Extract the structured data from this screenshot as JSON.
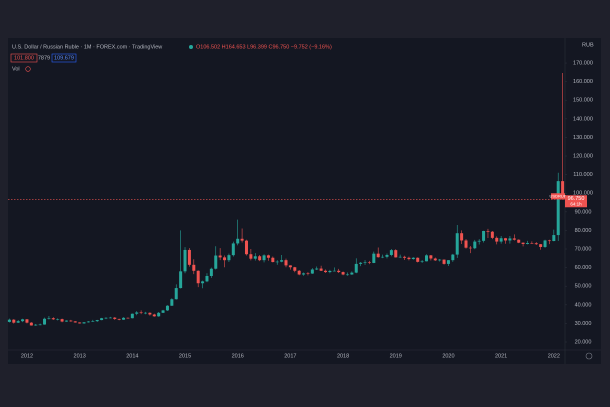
{
  "chart_data": {
    "type": "candlestick",
    "title": "U.S. Dollar / Russian Ruble · 1M · FOREX.com · TradingView",
    "quote": "O106.502 H164.653 L96.399 C96.750 −9.752 (−9.16%)",
    "badges": [
      "101.800",
      "7879",
      "109.679"
    ],
    "indicator": "Vol",
    "currency": "RUB",
    "symbol": "USDRUB",
    "last_label": "96.750",
    "countdown": "64:1h",
    "up_color": "#26a69a",
    "down_color": "#ef5350",
    "grid": false,
    "categories": [
      null,
      null,
      null,
      null,
      "2012",
      null,
      null,
      null,
      null,
      null,
      null,
      null,
      null,
      null,
      null,
      null,
      "2013",
      null,
      null,
      null,
      null,
      null,
      null,
      null,
      null,
      null,
      null,
      null,
      "2014",
      null,
      null,
      null,
      null,
      null,
      null,
      null,
      null,
      null,
      null,
      null,
      "2015",
      null,
      null,
      null,
      null,
      null,
      null,
      null,
      null,
      null,
      null,
      null,
      "2016",
      null,
      null,
      null,
      null,
      null,
      null,
      null,
      null,
      null,
      null,
      null,
      "2017",
      null,
      null,
      null,
      null,
      null,
      null,
      null,
      null,
      null,
      null,
      null,
      "2018",
      null,
      null,
      null,
      null,
      null,
      null,
      null,
      null,
      null,
      null,
      null,
      "2019",
      null,
      null,
      null,
      null,
      null,
      null,
      null,
      null,
      null,
      null,
      null,
      "2020",
      null,
      null,
      null,
      null,
      null,
      null,
      null,
      null,
      null,
      null,
      null,
      "2021",
      null,
      null,
      null,
      null,
      null,
      null,
      null,
      null,
      null,
      null,
      null,
      "2022",
      null,
      null
    ],
    "ohlc": [
      [
        30.8,
        32.6,
        30.5,
        32.0
      ],
      [
        32.0,
        32.3,
        29.9,
        30.4
      ],
      [
        30.4,
        31.8,
        30.2,
        31.2
      ],
      [
        31.2,
        32.5,
        30.7,
        32.2
      ],
      [
        32.2,
        32.3,
        30.0,
        30.4
      ],
      [
        30.4,
        30.7,
        28.8,
        28.9
      ],
      [
        28.9,
        29.7,
        28.7,
        29.3
      ],
      [
        29.3,
        29.9,
        29.0,
        29.4
      ],
      [
        29.4,
        33.1,
        29.3,
        32.5
      ],
      [
        32.5,
        34.0,
        32.1,
        32.8
      ],
      [
        32.8,
        33.3,
        31.9,
        32.2
      ],
      [
        32.2,
        32.7,
        31.6,
        32.3
      ],
      [
        32.3,
        32.6,
        30.6,
        31.0
      ],
      [
        31.0,
        31.7,
        30.8,
        31.5
      ],
      [
        31.5,
        31.9,
        30.9,
        31.1
      ],
      [
        31.1,
        31.2,
        30.4,
        30.5
      ],
      [
        30.5,
        30.6,
        29.9,
        30.0
      ],
      [
        30.0,
        30.7,
        29.8,
        30.6
      ],
      [
        30.6,
        31.3,
        30.4,
        31.0
      ],
      [
        31.0,
        31.9,
        30.9,
        31.2
      ],
      [
        31.2,
        31.9,
        30.8,
        31.8
      ],
      [
        31.8,
        33.0,
        31.7,
        32.8
      ],
      [
        32.8,
        33.3,
        32.3,
        33.0
      ],
      [
        33.0,
        33.5,
        32.8,
        33.1
      ],
      [
        33.1,
        33.4,
        31.9,
        32.4
      ],
      [
        32.4,
        32.5,
        31.7,
        32.0
      ],
      [
        32.0,
        33.4,
        31.9,
        33.0
      ],
      [
        33.0,
        33.2,
        32.6,
        32.8
      ],
      [
        32.8,
        35.3,
        32.7,
        35.2
      ],
      [
        35.2,
        36.6,
        34.4,
        35.9
      ],
      [
        35.9,
        37.0,
        35.0,
        35.7
      ],
      [
        35.7,
        36.2,
        34.9,
        35.7
      ],
      [
        35.7,
        35.9,
        34.2,
        34.8
      ],
      [
        34.8,
        35.2,
        33.6,
        33.8
      ],
      [
        33.8,
        36.1,
        33.6,
        35.7
      ],
      [
        35.7,
        37.3,
        35.6,
        37.0
      ],
      [
        37.0,
        39.8,
        36.7,
        39.5
      ],
      [
        39.5,
        43.5,
        39.4,
        43.0
      ],
      [
        43.0,
        51.0,
        42.8,
        49.0
      ],
      [
        49.0,
        80.0,
        48.8,
        58.0
      ],
      [
        58.0,
        71.0,
        57.0,
        69.5
      ],
      [
        69.5,
        70.5,
        60.5,
        61.5
      ],
      [
        61.5,
        64.5,
        56.5,
        58.3
      ],
      [
        58.3,
        58.5,
        49.5,
        51.6
      ],
      [
        51.6,
        53.0,
        48.9,
        52.6
      ],
      [
        52.6,
        57.0,
        52.2,
        55.5
      ],
      [
        55.5,
        60.0,
        54.5,
        59.4
      ],
      [
        59.4,
        71.5,
        59.0,
        66.5
      ],
      [
        66.5,
        70.5,
        64.0,
        65.5
      ],
      [
        65.5,
        66.5,
        60.2,
        64.0
      ],
      [
        64.0,
        67.5,
        63.0,
        66.7
      ],
      [
        66.7,
        74.0,
        66.0,
        73.0
      ],
      [
        73.0,
        85.8,
        72.0,
        75.5
      ],
      [
        75.5,
        81.0,
        73.5,
        74.5
      ],
      [
        74.5,
        75.0,
        66.5,
        67.2
      ],
      [
        67.2,
        70.0,
        63.9,
        64.8
      ],
      [
        64.8,
        67.8,
        63.8,
        66.1
      ],
      [
        66.1,
        66.8,
        63.5,
        64.0
      ],
      [
        64.0,
        67.2,
        62.8,
        66.6
      ],
      [
        66.6,
        67.0,
        63.7,
        65.3
      ],
      [
        65.3,
        66.0,
        62.8,
        63.0
      ],
      [
        63.0,
        64.0,
        61.5,
        63.2
      ],
      [
        63.2,
        66.8,
        62.9,
        64.0
      ],
      [
        64.0,
        64.8,
        60.2,
        61.2
      ],
      [
        61.2,
        61.3,
        58.9,
        60.2
      ],
      [
        60.2,
        60.4,
        57.5,
        58.3
      ],
      [
        58.3,
        58.7,
        55.9,
        56.3
      ],
      [
        56.3,
        57.4,
        55.6,
        56.9
      ],
      [
        56.9,
        57.6,
        55.8,
        56.8
      ],
      [
        56.8,
        59.7,
        56.6,
        59.0
      ],
      [
        59.0,
        60.6,
        58.7,
        59.5
      ],
      [
        59.5,
        61.0,
        58.2,
        58.3
      ],
      [
        58.3,
        59.0,
        57.1,
        57.6
      ],
      [
        57.6,
        58.8,
        57.0,
        58.2
      ],
      [
        58.2,
        60.1,
        58.0,
        58.3
      ],
      [
        58.3,
        59.3,
        57.1,
        57.6
      ],
      [
        57.6,
        57.9,
        55.9,
        56.3
      ],
      [
        56.3,
        57.4,
        55.6,
        56.3
      ],
      [
        56.3,
        58.0,
        56.1,
        57.3
      ],
      [
        57.3,
        65.0,
        57.0,
        62.0
      ],
      [
        62.0,
        63.0,
        60.8,
        62.6
      ],
      [
        62.6,
        64.0,
        61.5,
        62.8
      ],
      [
        62.8,
        63.6,
        61.9,
        62.5
      ],
      [
        62.5,
        68.6,
        62.4,
        67.5
      ],
      [
        67.5,
        70.8,
        65.4,
        65.6
      ],
      [
        65.6,
        67.0,
        65.1,
        65.8
      ],
      [
        65.8,
        67.6,
        65.0,
        66.8
      ],
      [
        66.8,
        70.0,
        66.1,
        69.4
      ],
      [
        69.4,
        69.9,
        65.4,
        65.5
      ],
      [
        65.5,
        67.0,
        65.3,
        65.8
      ],
      [
        65.8,
        66.4,
        64.1,
        65.3
      ],
      [
        65.3,
        65.9,
        63.9,
        64.6
      ],
      [
        64.6,
        65.6,
        64.3,
        65.3
      ],
      [
        65.3,
        65.5,
        62.8,
        63.1
      ],
      [
        63.1,
        64.1,
        62.5,
        63.4
      ],
      [
        63.4,
        67.2,
        63.3,
        66.6
      ],
      [
        66.6,
        66.8,
        63.8,
        64.9
      ],
      [
        64.9,
        65.4,
        63.6,
        63.9
      ],
      [
        63.9,
        64.6,
        63.3,
        64.3
      ],
      [
        64.3,
        64.4,
        61.6,
        62.0
      ],
      [
        62.0,
        64.1,
        60.9,
        64.0
      ],
      [
        64.0,
        67.4,
        63.1,
        67.0
      ],
      [
        67.0,
        82.9,
        65.2,
        78.5
      ],
      [
        78.5,
        80.0,
        72.7,
        74.6
      ],
      [
        74.6,
        75.4,
        70.2,
        70.7
      ],
      [
        70.7,
        71.6,
        67.8,
        70.4
      ],
      [
        70.4,
        74.9,
        69.9,
        74.0
      ],
      [
        74.0,
        75.3,
        72.4,
        74.4
      ],
      [
        74.4,
        79.8,
        73.5,
        79.7
      ],
      [
        79.7,
        80.8,
        75.9,
        79.3
      ],
      [
        79.3,
        79.7,
        75.3,
        76.0
      ],
      [
        76.0,
        76.8,
        72.5,
        74.0
      ],
      [
        74.0,
        77.0,
        72.9,
        75.8
      ],
      [
        75.8,
        76.0,
        72.8,
        74.6
      ],
      [
        74.6,
        77.0,
        72.9,
        75.7
      ],
      [
        75.7,
        77.9,
        74.6,
        75.0
      ],
      [
        75.0,
        75.2,
        73.2,
        73.4
      ],
      [
        73.4,
        73.6,
        71.4,
        72.7
      ],
      [
        72.7,
        74.4,
        72.5,
        73.2
      ],
      [
        73.2,
        74.1,
        72.8,
        73.1
      ],
      [
        73.1,
        73.7,
        72.2,
        72.6
      ],
      [
        72.6,
        72.7,
        69.6,
        71.1
      ],
      [
        71.1,
        75.0,
        70.6,
        74.6
      ],
      [
        74.6,
        75.0,
        72.6,
        74.3
      ],
      [
        74.3,
        80.4,
        74.2,
        77.5
      ],
      [
        77.5,
        111.0,
        74.3,
        106.502
      ],
      [
        106.502,
        164.653,
        96.399,
        96.75
      ]
    ],
    "ylim": [
      15.7,
      179.7
    ],
    "yticks": [
      {
        "value": 20,
        "label": "20.000"
      },
      {
        "value": 30,
        "label": "30.000"
      },
      {
        "value": 40,
        "label": "40.000"
      },
      {
        "value": 50,
        "label": "50.000"
      },
      {
        "value": 60,
        "label": "60.000"
      },
      {
        "value": 70,
        "label": "70.000"
      },
      {
        "value": 80,
        "label": "80.000"
      },
      {
        "value": 90,
        "label": "90.000"
      },
      {
        "value": 100,
        "label": "100.000"
      },
      {
        "value": 110,
        "label": "110.000"
      },
      {
        "value": 120,
        "label": "120.000"
      },
      {
        "value": 130,
        "label": "130.000"
      },
      {
        "value": 140,
        "label": "140.000"
      },
      {
        "value": 150,
        "label": "150.000"
      },
      {
        "value": 160,
        "label": "160.000"
      },
      {
        "value": 170,
        "label": "170.000"
      }
    ]
  }
}
